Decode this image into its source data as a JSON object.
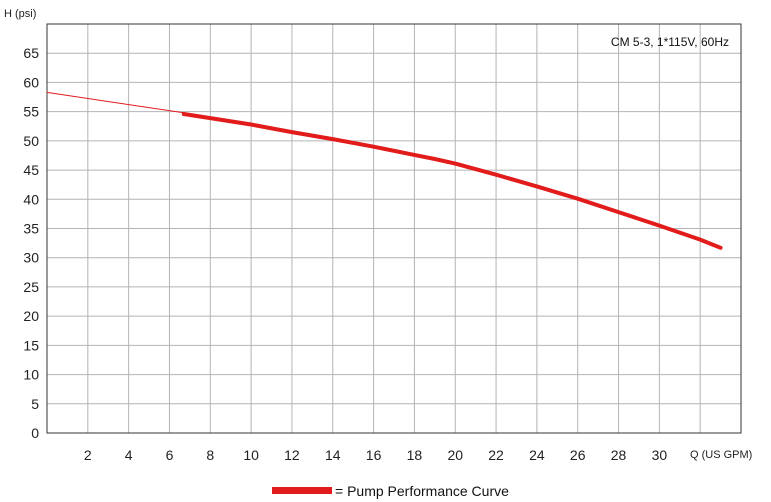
{
  "chart_data": {
    "type": "line",
    "title": "",
    "xlabel": "Q (US GPM)",
    "ylabel": "H (psi)",
    "annotation": "CM 5-3, 1*115V, 60Hz",
    "xlim": [
      0,
      34
    ],
    "ylim": [
      0,
      70
    ],
    "xticks": [
      2,
      4,
      6,
      8,
      10,
      12,
      14,
      16,
      18,
      20,
      22,
      24,
      26,
      28,
      30
    ],
    "yticks": [
      0,
      5,
      10,
      15,
      20,
      25,
      30,
      35,
      40,
      45,
      50,
      55,
      60,
      65
    ],
    "grid": true,
    "legend": {
      "position": "bottom-center",
      "label": "= Pump Performance Curve"
    },
    "series": [
      {
        "name": "",
        "role": "extension",
        "color": "#e21b1b",
        "x": [
          0,
          6.7
        ],
        "y": [
          58.3,
          54.8
        ]
      },
      {
        "name": "Pump Performance Curve",
        "role": "main",
        "color": "#e21b1b",
        "x": [
          6.7,
          8,
          10,
          12,
          14,
          16,
          18,
          19,
          20,
          22,
          24,
          26,
          28,
          30,
          32,
          33
        ],
        "y": [
          54.6,
          53.9,
          52.8,
          51.5,
          50.3,
          49,
          47.6,
          46.9,
          46.1,
          44.2,
          42.2,
          40.1,
          37.8,
          35.5,
          33.1,
          31.7
        ]
      }
    ]
  }
}
